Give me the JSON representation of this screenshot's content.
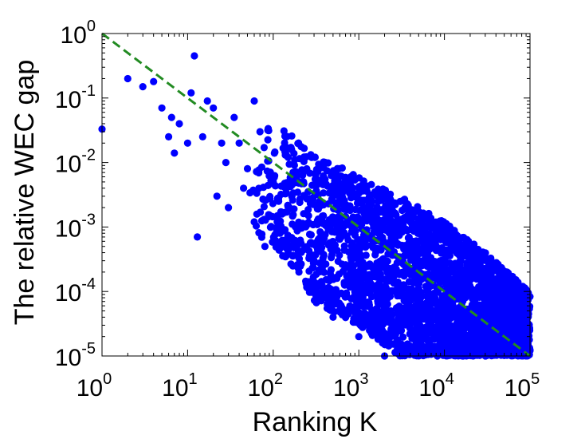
{
  "chart_data": {
    "type": "scatter",
    "title": "",
    "xlabel": "Ranking K",
    "ylabel": "The relative WEC gap",
    "xscale": "log",
    "yscale": "log",
    "xlim": [
      1,
      100000
    ],
    "ylim": [
      1e-05,
      1
    ],
    "grid": false,
    "legend": "none",
    "x_ticks": [
      {
        "base": "10",
        "exp": "0",
        "value": 1
      },
      {
        "base": "10",
        "exp": "1",
        "value": 10
      },
      {
        "base": "10",
        "exp": "2",
        "value": 100
      },
      {
        "base": "10",
        "exp": "3",
        "value": 1000
      },
      {
        "base": "10",
        "exp": "4",
        "value": 10000
      },
      {
        "base": "10",
        "exp": "5",
        "value": 100000
      }
    ],
    "y_ticks": [
      {
        "base": "10",
        "exp": "-5",
        "value": 1e-05
      },
      {
        "base": "10",
        "exp": "-4",
        "value": 0.0001
      },
      {
        "base": "10",
        "exp": "-3",
        "value": 0.001
      },
      {
        "base": "10",
        "exp": "-2",
        "value": 0.01
      },
      {
        "base": "10",
        "exp": "-1",
        "value": 0.1
      },
      {
        "base": "10",
        "exp": "0",
        "value": 1
      }
    ],
    "series": [
      {
        "color": "#0000ff",
        "marker": "circle",
        "points": [
          {
            "x": 1,
            "y": 0.033
          },
          {
            "x": 2,
            "y": 0.2
          },
          {
            "x": 3,
            "y": 0.15
          },
          {
            "x": 4,
            "y": 0.18
          },
          {
            "x": 5,
            "y": 0.07
          },
          {
            "x": 6,
            "y": 0.025
          },
          {
            "x": 6.5,
            "y": 0.05
          },
          {
            "x": 7,
            "y": 0.014
          },
          {
            "x": 8,
            "y": 0.04
          },
          {
            "x": 10,
            "y": 0.02
          },
          {
            "x": 11,
            "y": 0.12
          },
          {
            "x": 12,
            "y": 0.45
          },
          {
            "x": 13,
            "y": 0.0007
          },
          {
            "x": 15,
            "y": 0.025
          },
          {
            "x": 17,
            "y": 0.09
          },
          {
            "x": 20,
            "y": 0.07
          },
          {
            "x": 22,
            "y": 0.003
          },
          {
            "x": 25,
            "y": 0.02
          },
          {
            "x": 28,
            "y": 0.01
          },
          {
            "x": 30,
            "y": 0.002
          },
          {
            "x": 35,
            "y": 0.05
          },
          {
            "x": 40,
            "y": 0.02
          },
          {
            "x": 45,
            "y": 0.004
          },
          {
            "x": 50,
            "y": 0.008
          },
          {
            "x": 60,
            "y": 0.09
          },
          {
            "x": 60,
            "y": 0.0012
          },
          {
            "x": 70,
            "y": 0.03
          },
          {
            "x": 80,
            "y": 0.0005
          },
          {
            "x": 100,
            "y": 0.005
          },
          {
            "x": 120,
            "y": 0.0008
          },
          {
            "x": 150,
            "y": 0.002
          },
          {
            "x": 200,
            "y": 0.0002
          },
          {
            "x": 300,
            "y": 0.0003
          },
          {
            "x": 500,
            "y": 4e-05
          },
          {
            "x": 1000,
            "y": 2e-05
          },
          {
            "x": 2000,
            "y": 1e-05
          }
        ],
        "cloud_band": [
          {
            "x": 50,
            "y_low": 0.001,
            "y_high": 0.03
          },
          {
            "x": 100,
            "y_low": 0.0005,
            "y_high": 0.05
          },
          {
            "x": 200,
            "y_low": 0.0002,
            "y_high": 0.02
          },
          {
            "x": 300,
            "y_low": 7e-05,
            "y_high": 0.015
          },
          {
            "x": 1000,
            "y_low": 3e-05,
            "y_high": 0.006
          },
          {
            "x": 3000,
            "y_low": 1e-05,
            "y_high": 0.003
          },
          {
            "x": 10000,
            "y_low": 1e-05,
            "y_high": 0.0012
          },
          {
            "x": 30000,
            "y_low": 1e-05,
            "y_high": 0.0004
          },
          {
            "x": 100000,
            "y_low": 1e-05,
            "y_high": 0.0001
          }
        ]
      }
    ],
    "reference_line": {
      "color": "#228b22",
      "style": "dashed",
      "x": [
        1,
        100000
      ],
      "y": [
        1,
        1e-05
      ]
    }
  }
}
